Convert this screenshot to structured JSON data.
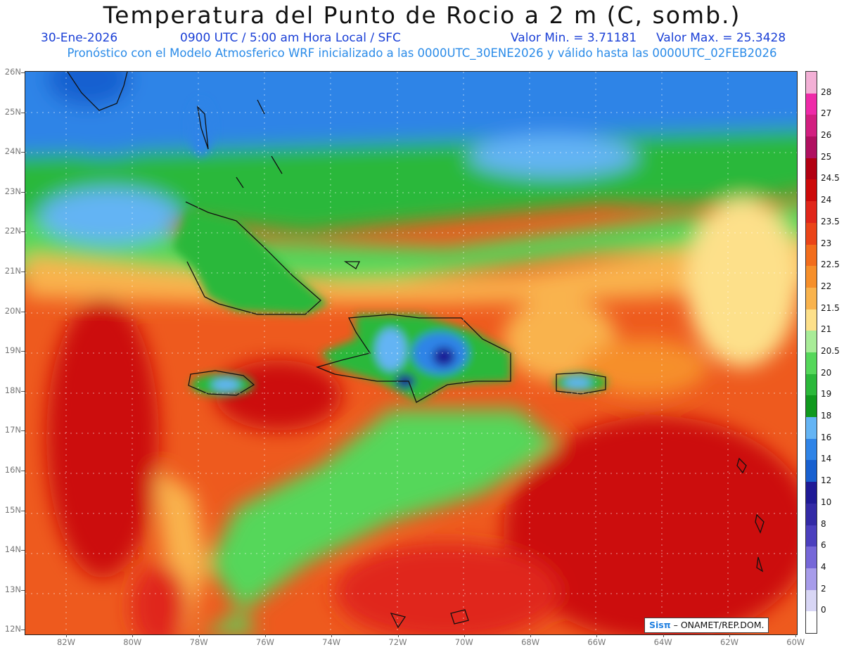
{
  "title": "Temperatura del Punto de Rocio a 2 m (C, somb.)",
  "date": "30-Ene-2026",
  "time_info": "0900 UTC / 5:00 am Hora Local / SFC",
  "valor_min": "Valor Min. = 3.71181",
  "valor_max": "Valor Max. = 25.3428",
  "forecast_info": "Pronóstico con el Modelo Atmosferico WRF inicializado a las 0000UTC_30ENE2026 y válido hasta las  0000UTC_02FEB2026",
  "lat_labels": [
    "26N",
    "25N",
    "24N",
    "23N",
    "22N",
    "21N",
    "20N",
    "19N",
    "18N",
    "17N",
    "16N",
    "15N",
    "14N",
    "13N",
    "12N"
  ],
  "lon_labels": [
    "82W",
    "80W",
    "78W",
    "76W",
    "74W",
    "72W",
    "70W",
    "68W",
    "66W",
    "64W",
    "62W",
    "60W"
  ],
  "colorbar": {
    "labels": [
      "28",
      "27",
      "26",
      "25",
      "24.5",
      "24",
      "23.5",
      "23",
      "22.5",
      "22",
      "21.5",
      "21",
      "20.5",
      "20",
      "19",
      "18",
      "16",
      "14",
      "12",
      "10",
      "8",
      "6",
      "4",
      "2",
      "0"
    ],
    "colors": [
      "#f3b0d6",
      "#ee2aa8",
      "#d21f80",
      "#b01060",
      "#b20012",
      "#cc0a0a",
      "#e0261a",
      "#ea4418",
      "#f26d1c",
      "#f68f2a",
      "#f9b34d",
      "#fde08a",
      "#a8ec98",
      "#55d75a",
      "#2bb83a",
      "#10991e",
      "#64b4f4",
      "#2f84e7",
      "#1860d0",
      "#1f1a96",
      "#332aa6",
      "#4b3fbe",
      "#7667d8",
      "#a79cea",
      "#d8d6f5",
      "#ffffff"
    ]
  },
  "credit": {
    "logo": "Sisπ",
    "text": " – ONAMET/REP.DOM."
  }
}
